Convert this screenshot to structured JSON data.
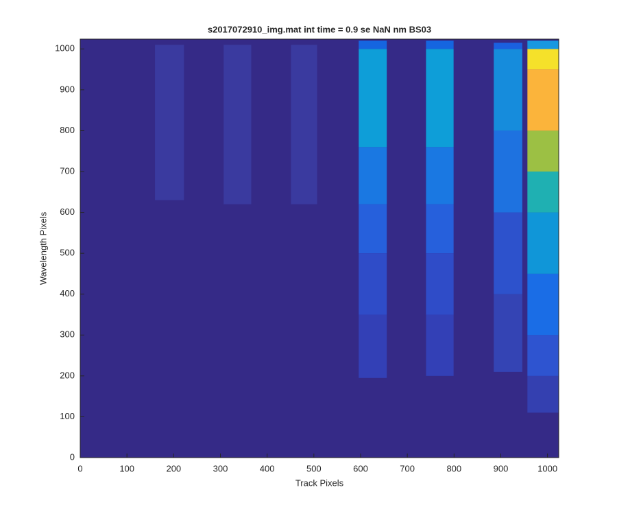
{
  "chart_data": {
    "type": "image",
    "title": "s2017072910_img.mat int time = 0.9 se  NaN nm BS03",
    "xlabel": "Track Pixels",
    "ylabel": "Wavelength Pixels",
    "xlim": [
      0,
      1024
    ],
    "ylim": [
      0,
      1024
    ],
    "xticks": [
      0,
      100,
      200,
      300,
      400,
      500,
      600,
      700,
      800,
      900,
      1000
    ],
    "yticks": [
      0,
      100,
      200,
      300,
      400,
      500,
      600,
      700,
      800,
      900,
      1000
    ],
    "background": "#352a87",
    "stripes": [
      {
        "x": [
          160,
          222
        ],
        "segments": [
          {
            "y": [
              630,
              1010
            ],
            "color": "#3a3a9f"
          }
        ]
      },
      {
        "x": [
          307,
          366
        ],
        "segments": [
          {
            "y": [
              620,
              1010
            ],
            "color": "#3a3a9f"
          }
        ]
      },
      {
        "x": [
          451,
          507
        ],
        "segments": [
          {
            "y": [
              620,
              1010
            ],
            "color": "#3a3a9f"
          }
        ]
      },
      {
        "x": [
          596,
          656
        ],
        "segments": [
          {
            "y": [
              195,
              350
            ],
            "color": "#3340b6"
          },
          {
            "y": [
              350,
              500
            ],
            "color": "#2f4cc8"
          },
          {
            "y": [
              500,
              620
            ],
            "color": "#2660dc"
          },
          {
            "y": [
              620,
              760
            ],
            "color": "#1a78e2"
          },
          {
            "y": [
              760,
              1000
            ],
            "color": "#0e9ed8"
          },
          {
            "y": [
              1000,
              1020
            ],
            "color": "#1565e0"
          }
        ]
      },
      {
        "x": [
          740,
          799
        ],
        "segments": [
          {
            "y": [
              200,
              350
            ],
            "color": "#3340b6"
          },
          {
            "y": [
              350,
              500
            ],
            "color": "#2f4cc8"
          },
          {
            "y": [
              500,
              620
            ],
            "color": "#2660dc"
          },
          {
            "y": [
              620,
              760
            ],
            "color": "#1a78e2"
          },
          {
            "y": [
              760,
              1000
            ],
            "color": "#0e9ed8"
          },
          {
            "y": [
              1000,
              1020
            ],
            "color": "#1565e0"
          }
        ]
      },
      {
        "x": [
          885,
          946
        ],
        "segments": [
          {
            "y": [
              210,
              400
            ],
            "color": "#3444b4"
          },
          {
            "y": [
              400,
              600
            ],
            "color": "#2d52cc"
          },
          {
            "y": [
              600,
              800
            ],
            "color": "#1e72e0"
          },
          {
            "y": [
              800,
              1000
            ],
            "color": "#168cdc"
          },
          {
            "y": [
              1000,
              1015
            ],
            "color": "#1a60e0"
          }
        ]
      },
      {
        "x": [
          957,
          1024
        ],
        "segments": [
          {
            "y": [
              110,
              200
            ],
            "color": "#3440b0"
          },
          {
            "y": [
              200,
              300
            ],
            "color": "#2e54d0"
          },
          {
            "y": [
              300,
              450
            ],
            "color": "#1a6de6"
          },
          {
            "y": [
              450,
              600
            ],
            "color": "#1096d8"
          },
          {
            "y": [
              600,
              700
            ],
            "color": "#1fb0b2"
          },
          {
            "y": [
              700,
              800
            ],
            "color": "#9cc044"
          },
          {
            "y": [
              800,
              950
            ],
            "color": "#fbb43b"
          },
          {
            "y": [
              950,
              1000
            ],
            "color": "#f5e12a"
          },
          {
            "y": [
              1000,
              1020
            ],
            "color": "#1898e0"
          }
        ]
      }
    ]
  }
}
